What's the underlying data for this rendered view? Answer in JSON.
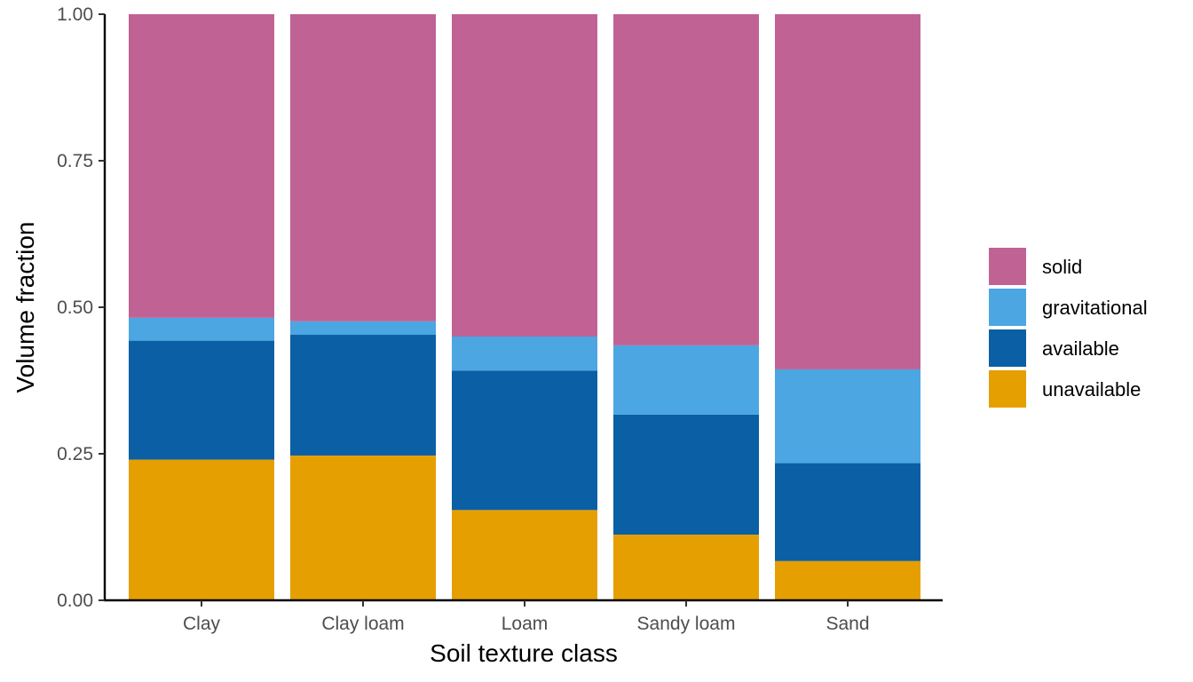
{
  "chart_data": {
    "type": "bar",
    "stacked": true,
    "title": "",
    "xlabel": "Soil texture class",
    "ylabel": "Volume fraction",
    "ylim": [
      0,
      1
    ],
    "yticks": [
      "0.00",
      "0.25",
      "0.50",
      "0.75",
      "1.00"
    ],
    "ytick_values": [
      0,
      0.25,
      0.5,
      0.75,
      1
    ],
    "grid": false,
    "legend_position": "right",
    "categories": [
      "Clay",
      "Clay loam",
      "Loam",
      "Sandy loam",
      "Sand"
    ],
    "series": [
      {
        "name": "unavailable",
        "color": "#E69F00",
        "values": [
          0.24,
          0.247,
          0.154,
          0.112,
          0.067
        ]
      },
      {
        "name": "available",
        "color": "#0B5FA5",
        "values": [
          0.203,
          0.206,
          0.238,
          0.205,
          0.167
        ]
      },
      {
        "name": "gravitational",
        "color": "#4BA6E2",
        "values": [
          0.039,
          0.023,
          0.058,
          0.118,
          0.16
        ]
      },
      {
        "name": "solid",
        "color": "#C16295",
        "values": [
          0.518,
          0.524,
          0.55,
          0.565,
          0.606
        ]
      }
    ],
    "legend_order": [
      "solid",
      "gravitational",
      "available",
      "unavailable"
    ]
  }
}
